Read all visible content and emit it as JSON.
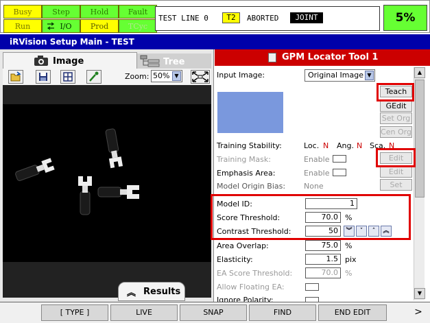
{
  "status": {
    "busy": "Busy",
    "step": "Step",
    "hold": "Hold",
    "fault": "Fault",
    "run": "Run",
    "io": "I/O",
    "prod": "Prod",
    "tcyc": "TCyc",
    "test_line": "TEST LINE 0",
    "task": "T2",
    "aborted": "ABORTED",
    "joint": "JOINT",
    "percent": "5%"
  },
  "title": "iRVision Setup Main - TEST",
  "left": {
    "tab_image": "Image",
    "tab_tree": "Tree",
    "zoom_label": "Zoom:",
    "zoom_value": "50%",
    "results_label": "Results"
  },
  "tool": {
    "header": "GPM Locator Tool 1",
    "input_image_label": "Input Image:",
    "input_image_value": "Original Image",
    "teach": "Teach",
    "gedit": "GEdit",
    "set_org": "Set Org",
    "cen_org": "Cen Org",
    "training_stability_label": "Training Stability:",
    "loc": "Loc.",
    "loc_val": "N",
    "ang": "Ang.",
    "ang_val": "N",
    "sca": "Sca.",
    "sca_val": "N",
    "training_mask_label": "Training Mask:",
    "training_mask_enable": "Enable",
    "training_mask_edit": "Edit",
    "emphasis_area_label": "Emphasis Area:",
    "emphasis_area_enable": "Enable",
    "emphasis_area_edit": "Edit",
    "model_origin_bias_label": "Model Origin Bias:",
    "model_origin_bias_value": "None",
    "model_origin_bias_set": "Set",
    "model_id_label": "Model ID:",
    "model_id_value": "1",
    "score_threshold_label": "Score Threshold:",
    "score_threshold_value": "70.0",
    "score_threshold_unit": "%",
    "contrast_threshold_label": "Contrast Threshold:",
    "contrast_threshold_value": "50",
    "area_overlap_label": "Area Overlap:",
    "area_overlap_value": "75.0",
    "area_overlap_unit": "%",
    "elasticity_label": "Elasticity:",
    "elasticity_value": "1.5",
    "elasticity_unit": "pix",
    "ea_score_label": "EA Score Threshold:",
    "ea_score_value": "70.0",
    "ea_score_unit": "%",
    "allow_floating_label": "Allow Floating EA:",
    "ignore_polarity_label": "Ignore Polarity:"
  },
  "fkeys": {
    "type": "[ TYPE ]",
    "live": "LIVE",
    "snap": "SNAP",
    "find": "FIND",
    "end_edit": "END EDIT",
    "next": ">"
  },
  "colors": {
    "title_blue": "#0000aa",
    "tool_red": "#cc0000",
    "status_green": "#66ff33",
    "status_yellow": "#ffff00",
    "highlight_red": "#e00000"
  },
  "icons": {
    "camera": "camera-icon",
    "tree": "tree-icon",
    "open": "open-folder-icon",
    "save": "save-icon",
    "grid": "grid-icon",
    "dropper": "dropper-icon",
    "fit": "fit-window-icon"
  }
}
